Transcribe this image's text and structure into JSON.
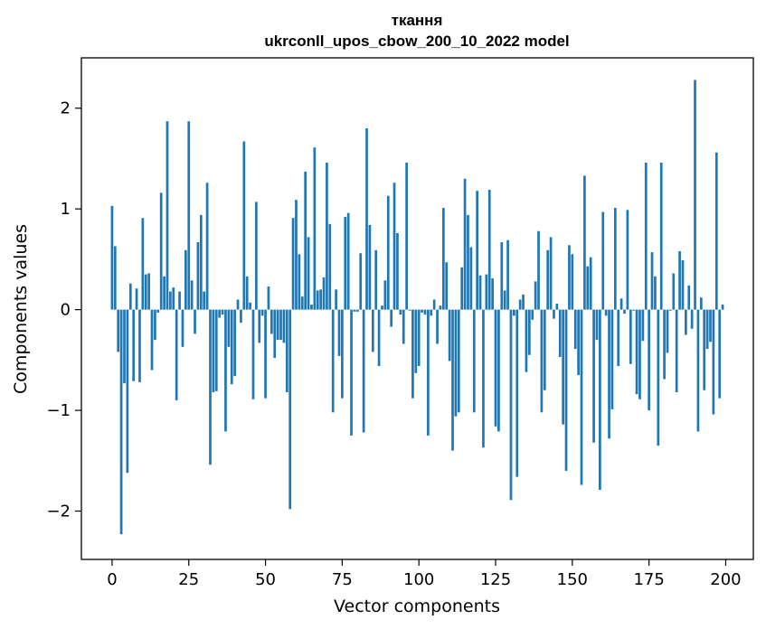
{
  "chart_data": {
    "type": "bar",
    "title_line1": "ткання",
    "title_line2": "ukrconll_upos_cbow_200_10_2022 model",
    "xlabel": "Vector components",
    "ylabel": "Components values",
    "xlim": [
      -10,
      209
    ],
    "ylim": [
      -2.48,
      2.5
    ],
    "xticks": [
      0,
      25,
      50,
      75,
      100,
      125,
      150,
      175,
      200
    ],
    "yticks": [
      -2,
      -1,
      0,
      1,
      2
    ],
    "ytick_labels": [
      "−2",
      "−1",
      "0",
      "1",
      "2"
    ],
    "bar_color": "#1f77b4",
    "grid": false,
    "x": [
      0,
      1,
      2,
      3,
      4,
      5,
      6,
      7,
      8,
      9,
      10,
      11,
      12,
      13,
      14,
      15,
      16,
      17,
      18,
      19,
      20,
      21,
      22,
      23,
      24,
      25,
      26,
      27,
      28,
      29,
      30,
      31,
      32,
      33,
      34,
      35,
      36,
      37,
      38,
      39,
      40,
      41,
      42,
      43,
      44,
      45,
      46,
      47,
      48,
      49,
      50,
      51,
      52,
      53,
      54,
      55,
      56,
      57,
      58,
      59,
      60,
      61,
      62,
      63,
      64,
      65,
      66,
      67,
      68,
      69,
      70,
      71,
      72,
      73,
      74,
      75,
      76,
      77,
      78,
      79,
      80,
      81,
      82,
      83,
      84,
      85,
      86,
      87,
      88,
      89,
      90,
      91,
      92,
      93,
      94,
      95,
      96,
      97,
      98,
      99,
      100,
      101,
      102,
      103,
      104,
      105,
      106,
      107,
      108,
      109,
      110,
      111,
      112,
      113,
      114,
      115,
      116,
      117,
      118,
      119,
      120,
      121,
      122,
      123,
      124,
      125,
      126,
      127,
      128,
      129,
      130,
      131,
      132,
      133,
      134,
      135,
      136,
      137,
      138,
      139,
      140,
      141,
      142,
      143,
      144,
      145,
      146,
      147,
      148,
      149,
      150,
      151,
      152,
      153,
      154,
      155,
      156,
      157,
      158,
      159,
      160,
      161,
      162,
      163,
      164,
      165,
      166,
      167,
      168,
      169,
      170,
      171,
      172,
      173,
      174,
      175,
      176,
      177,
      178,
      179,
      180,
      181,
      182,
      183,
      184,
      185,
      186,
      187,
      188,
      189,
      190,
      191,
      192,
      193,
      194,
      195,
      196,
      197,
      198,
      199
    ],
    "values": [
      1.03,
      0.63,
      -0.42,
      -2.23,
      -0.73,
      -1.62,
      0.26,
      -0.71,
      0.21,
      -0.72,
      0.91,
      0.35,
      0.36,
      -0.6,
      -0.3,
      -0.03,
      1.16,
      0.33,
      1.87,
      0.18,
      0.22,
      -0.9,
      0.18,
      -0.37,
      0.59,
      1.87,
      0.29,
      -0.24,
      0.67,
      0.94,
      0.18,
      1.26,
      -1.54,
      -0.82,
      -0.81,
      -0.08,
      -0.05,
      -1.21,
      -0.37,
      -0.74,
      -0.66,
      0.1,
      -0.13,
      1.67,
      0.33,
      0.07,
      -0.89,
      1.07,
      -0.33,
      -0.06,
      -0.88,
      0.23,
      -0.24,
      -0.48,
      -0.3,
      -0.3,
      -0.33,
      -0.82,
      -1.98,
      0.91,
      1.09,
      0.55,
      0.13,
      1.37,
      0.72,
      0.05,
      1.61,
      0.19,
      0.2,
      0.32,
      1.46,
      0.85,
      -1.02,
      0.2,
      -0.46,
      -0.88,
      0.92,
      0.96,
      -1.25,
      -0.02,
      -0.02,
      0.56,
      -1.22,
      1.8,
      0.84,
      -0.42,
      0.59,
      -0.56,
      0.04,
      0.29,
      1.13,
      -0.17,
      1.26,
      0.76,
      -0.05,
      -0.34,
      1.46,
      -0.01,
      -0.88,
      -0.63,
      -0.56,
      -0.03,
      -0.05,
      -1.25,
      -0.06,
      0.1,
      -0.34,
      0.04,
      1.01,
      0.47,
      -0.51,
      -1.4,
      -1.06,
      -1.02,
      0.42,
      1.3,
      0.94,
      0.62,
      -1.02,
      1.18,
      0.34,
      -1.37,
      0.35,
      1.19,
      0.31,
      -1.16,
      -1.21,
      0.67,
      0.19,
      0.69,
      -1.89,
      -0.06,
      -1.66,
      0.1,
      0.15,
      -0.62,
      -0.45,
      -0.1,
      0.28,
      0.78,
      -1.02,
      -0.8,
      0.59,
      0.72,
      -0.09,
      0.06,
      -0.47,
      -1.14,
      -1.6,
      0.64,
      0.55,
      -0.39,
      -0.65,
      -1.74,
      1.33,
      0.43,
      0.52,
      -1.32,
      -0.3,
      -1.79,
      0.97,
      -0.06,
      -1.28,
      -0.99,
      1.01,
      -0.56,
      0.11,
      -0.04,
      0.99,
      -0.54,
      -0.01,
      -0.84,
      -0.89,
      -0.31,
      1.46,
      -1.0,
      0.57,
      0.33,
      -1.35,
      1.46,
      -0.69,
      -0.43,
      -0.01,
      0.36,
      -0.82,
      0.58,
      0.49,
      -0.25,
      0.24,
      -0.19,
      2.28,
      -1.21,
      0.12,
      -0.8,
      -0.39,
      -0.32,
      -1.04,
      1.56,
      -0.88,
      0.05
    ]
  }
}
